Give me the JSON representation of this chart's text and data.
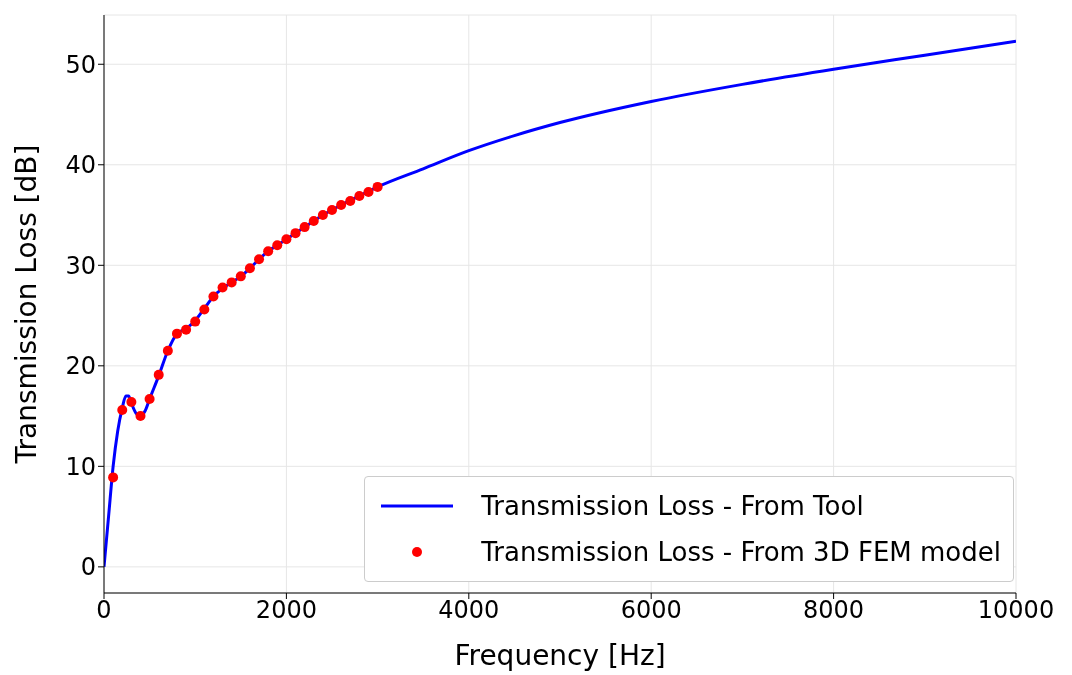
{
  "chart_data": {
    "type": "line",
    "xlabel": "Frequency [Hz]",
    "ylabel": "Transmission Loss [dB]",
    "xlim": [
      0,
      10000
    ],
    "xticks": [
      0,
      2000,
      4000,
      6000,
      8000,
      10000
    ],
    "ylim": [
      -2.6,
      54.9
    ],
    "yticks": [
      0,
      10,
      20,
      30,
      40,
      50
    ],
    "grid": true,
    "legend": "bottom right",
    "series": [
      {
        "name": "Transmission Loss - From Tool",
        "color": "#0000ff",
        "marker": "none",
        "line_style": "solid",
        "x": [
          0,
          50,
          100,
          150,
          200,
          240,
          270,
          300,
          350,
          400,
          450,
          500,
          600,
          700,
          800,
          900,
          1000,
          1100,
          1200,
          1300,
          1400,
          1500,
          1600,
          1700,
          1800,
          1900,
          2000,
          2200,
          2400,
          2600,
          2800,
          3000,
          3500,
          4000,
          4500,
          5000,
          6000,
          7000,
          8000,
          9000,
          10000
        ],
        "values": [
          0,
          5,
          10,
          13.5,
          15.8,
          17,
          17,
          16.3,
          15.3,
          15,
          15.5,
          16.7,
          19,
          21.5,
          23.2,
          23.7,
          24.5,
          25.7,
          26.9,
          27.7,
          28.3,
          28.9,
          29.7,
          30.6,
          31.4,
          32,
          32.6,
          33.8,
          35,
          36,
          36.9,
          37.8,
          39.6,
          41.4,
          42.9,
          44.2,
          46.3,
          48,
          49.5,
          50.9,
          52.3
        ]
      },
      {
        "name": "Transmission Loss - From 3D FEM model",
        "type": "scatter",
        "color": "#ff0000",
        "marker": "circle",
        "x": [
          100,
          200,
          300,
          400,
          500,
          600,
          700,
          800,
          900,
          1000,
          1100,
          1200,
          1300,
          1400,
          1500,
          1600,
          1700,
          1800,
          1900,
          2000,
          2100,
          2200,
          2300,
          2400,
          2500,
          2600,
          2700,
          2800,
          2900,
          3000
        ],
        "values": [
          8.9,
          15.6,
          16.4,
          15,
          16.7,
          19.1,
          21.5,
          23.2,
          23.6,
          24.4,
          25.6,
          26.9,
          27.8,
          28.3,
          28.9,
          29.7,
          30.6,
          31.4,
          32,
          32.6,
          33.2,
          33.8,
          34.4,
          35,
          35.5,
          36,
          36.4,
          36.9,
          37.3,
          37.8
        ]
      }
    ]
  }
}
